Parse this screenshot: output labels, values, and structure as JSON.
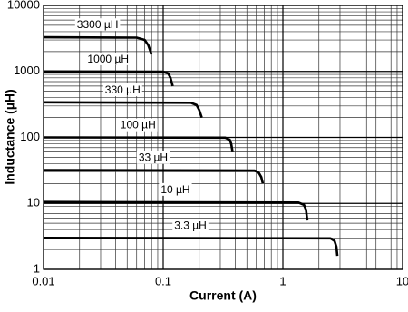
{
  "chart_data": {
    "type": "line",
    "x_label": "Current (A)",
    "y_label": "Inductance (µH)",
    "xscale": "log",
    "yscale": "log",
    "grid": true,
    "minor_grid": true,
    "xlim": [
      0.01,
      10
    ],
    "ylim": [
      1,
      10000
    ],
    "xticks": [
      0.01,
      0.1,
      1,
      10
    ],
    "yticks": [
      1,
      10,
      100,
      1000,
      10000
    ],
    "series": [
      {
        "name": "3300 µH",
        "color": "#000000",
        "x": [
          0.01,
          0.06,
          0.07,
          0.075,
          0.08
        ],
        "values": [
          3300,
          3250,
          3000,
          2500,
          1800
        ]
      },
      {
        "name": "1000 µH",
        "color": "#000000",
        "x": [
          0.01,
          0.1,
          0.11,
          0.115,
          0.12
        ],
        "values": [
          1000,
          990,
          930,
          800,
          600
        ]
      },
      {
        "name": "330 µH",
        "color": "#000000",
        "x": [
          0.01,
          0.17,
          0.19,
          0.2,
          0.21
        ],
        "values": [
          340,
          335,
          310,
          260,
          200
        ]
      },
      {
        "name": "100 µH",
        "color": "#000000",
        "x": [
          0.01,
          0.33,
          0.36,
          0.37,
          0.38
        ],
        "values": [
          100,
          99,
          92,
          80,
          60
        ]
      },
      {
        "name": "33 µH",
        "color": "#000000",
        "x": [
          0.01,
          0.58,
          0.63,
          0.66,
          0.68
        ],
        "values": [
          32,
          31.5,
          29,
          25,
          20
        ]
      },
      {
        "name": "10 µH",
        "color": "#000000",
        "x": [
          0.01,
          1.35,
          1.5,
          1.56,
          1.6
        ],
        "values": [
          10.5,
          10.3,
          9.5,
          8,
          5.5
        ]
      },
      {
        "name": "3.3 µH",
        "color": "#000000",
        "x": [
          0.01,
          2.5,
          2.7,
          2.8,
          2.85
        ],
        "values": [
          3,
          2.95,
          2.7,
          2.2,
          1.6
        ]
      }
    ]
  }
}
